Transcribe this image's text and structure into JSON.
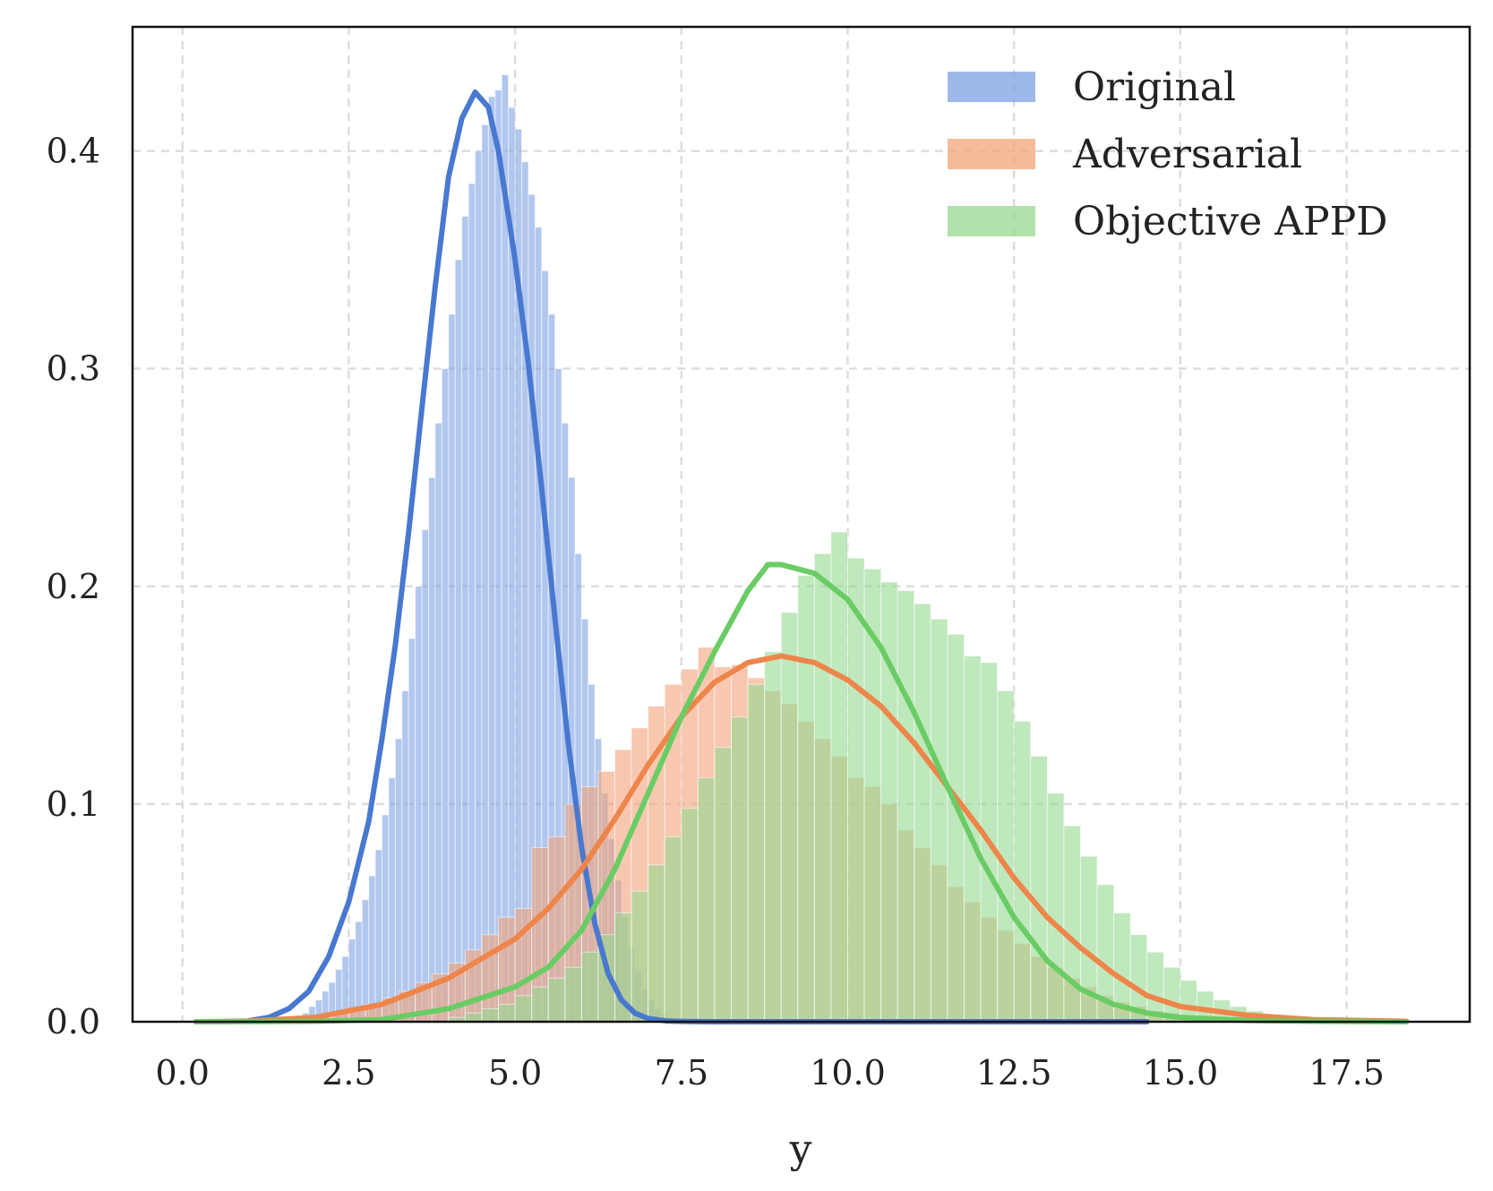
{
  "chart_data": {
    "type": "histogram",
    "title": "",
    "xlabel": "y",
    "ylabel": "",
    "xlim": [
      -0.75,
      19.35
    ],
    "ylim": [
      0,
      0.457
    ],
    "grid": true,
    "legend_position": "top-right",
    "x_ticks": [
      "0.0",
      "2.5",
      "5.0",
      "7.5",
      "10.0",
      "12.5",
      "15.0",
      "17.5"
    ],
    "y_ticks": [
      "0.0",
      "0.1",
      "0.2",
      "0.3",
      "0.4"
    ],
    "series": [
      {
        "name": "Original",
        "color": "#4878d0",
        "hist_color": "#7ea2e2",
        "bins": {
          "x_start": 1.8,
          "width": 0.1,
          "heights": [
            0.004,
            0.007,
            0.01,
            0.014,
            0.018,
            0.024,
            0.03,
            0.038,
            0.046,
            0.056,
            0.067,
            0.079,
            0.095,
            0.112,
            0.13,
            0.152,
            0.176,
            0.2,
            0.226,
            0.25,
            0.275,
            0.3,
            0.325,
            0.35,
            0.37,
            0.385,
            0.4,
            0.412,
            0.425,
            0.428,
            0.435,
            0.42,
            0.41,
            0.395,
            0.38,
            0.365,
            0.345,
            0.325,
            0.3,
            0.275,
            0.25,
            0.215,
            0.185,
            0.155,
            0.13,
            0.105,
            0.084,
            0.065,
            0.048,
            0.034,
            0.023,
            0.015,
            0.01,
            0.006,
            0.004,
            0.002,
            0.001
          ]
        },
        "kde": {
          "x": [
            1.0,
            1.3,
            1.6,
            1.9,
            2.2,
            2.5,
            2.8,
            3.0,
            3.2,
            3.4,
            3.6,
            3.8,
            4.0,
            4.2,
            4.4,
            4.6,
            4.75,
            4.9,
            5.0,
            5.2,
            5.4,
            5.6,
            5.8,
            6.0,
            6.2,
            6.4,
            6.6,
            6.8,
            7.0,
            7.3,
            7.6,
            8.0,
            9.0,
            12.0,
            14.5
          ],
          "y": [
            0.0005,
            0.002,
            0.006,
            0.014,
            0.03,
            0.055,
            0.092,
            0.13,
            0.173,
            0.225,
            0.282,
            0.338,
            0.388,
            0.415,
            0.427,
            0.42,
            0.4,
            0.37,
            0.35,
            0.302,
            0.245,
            0.185,
            0.128,
            0.08,
            0.045,
            0.022,
            0.01,
            0.004,
            0.0015,
            0.0003,
            0.0001,
            0.0,
            0.0,
            0.0,
            0.0
          ]
        }
      },
      {
        "name": "Adversarial",
        "color": "#ee854a",
        "hist_color": "#f2a47a",
        "bins": {
          "x_start": 2.0,
          "width": 0.25,
          "heights": [
            0.002,
            0.004,
            0.006,
            0.008,
            0.011,
            0.014,
            0.018,
            0.022,
            0.027,
            0.033,
            0.04,
            0.048,
            0.052,
            0.08,
            0.085,
            0.1,
            0.108,
            0.115,
            0.125,
            0.135,
            0.145,
            0.155,
            0.162,
            0.172,
            0.163,
            0.164,
            0.158,
            0.152,
            0.146,
            0.138,
            0.13,
            0.122,
            0.112,
            0.108,
            0.1,
            0.088,
            0.08,
            0.072,
            0.062,
            0.055,
            0.048,
            0.042,
            0.036,
            0.03,
            0.025,
            0.02,
            0.016,
            0.012,
            0.009,
            0.007,
            0.005,
            0.004,
            0.003
          ]
        },
        "kde": {
          "x": [
            0.2,
            1.0,
            2.0,
            3.0,
            4.0,
            5.0,
            5.5,
            6.0,
            6.5,
            7.0,
            7.5,
            8.0,
            8.5,
            9.0,
            9.5,
            10.0,
            10.5,
            11.0,
            11.5,
            12.0,
            12.5,
            13.0,
            13.5,
            14.0,
            14.5,
            15.0,
            15.5,
            16.0,
            17.0,
            18.4
          ],
          "y": [
            0.0,
            0.0003,
            0.002,
            0.008,
            0.02,
            0.038,
            0.052,
            0.07,
            0.093,
            0.118,
            0.14,
            0.156,
            0.165,
            0.168,
            0.165,
            0.157,
            0.145,
            0.128,
            0.108,
            0.088,
            0.066,
            0.048,
            0.034,
            0.022,
            0.012,
            0.007,
            0.005,
            0.003,
            0.001,
            0.0002
          ]
        }
      },
      {
        "name": "Objective APPD",
        "color": "#6acc64",
        "hist_color": "#95d98f",
        "bins": {
          "x_start": 4.0,
          "width": 0.25,
          "heights": [
            0.002,
            0.004,
            0.006,
            0.008,
            0.012,
            0.016,
            0.02,
            0.025,
            0.032,
            0.04,
            0.05,
            0.06,
            0.072,
            0.085,
            0.098,
            0.112,
            0.126,
            0.14,
            0.155,
            0.17,
            0.188,
            0.205,
            0.215,
            0.225,
            0.213,
            0.208,
            0.202,
            0.198,
            0.192,
            0.185,
            0.178,
            0.168,
            0.165,
            0.152,
            0.138,
            0.122,
            0.105,
            0.09,
            0.076,
            0.063,
            0.05,
            0.04,
            0.032,
            0.025,
            0.019,
            0.014,
            0.01,
            0.007,
            0.005,
            0.003
          ]
        },
        "kde": {
          "x": [
            0.2,
            2.0,
            3.0,
            4.0,
            5.0,
            5.5,
            6.0,
            6.5,
            7.0,
            7.5,
            8.0,
            8.5,
            8.8,
            9.0,
            9.5,
            10.0,
            10.5,
            11.0,
            11.5,
            12.0,
            12.5,
            13.0,
            13.5,
            14.0,
            14.5,
            15.0,
            16.0,
            17.0,
            18.4
          ],
          "y": [
            0.0,
            0.0002,
            0.001,
            0.006,
            0.016,
            0.025,
            0.042,
            0.07,
            0.105,
            0.14,
            0.17,
            0.198,
            0.21,
            0.21,
            0.206,
            0.194,
            0.172,
            0.142,
            0.108,
            0.075,
            0.048,
            0.028,
            0.015,
            0.008,
            0.004,
            0.002,
            0.0006,
            0.0002,
            0.0
          ]
        }
      }
    ]
  }
}
